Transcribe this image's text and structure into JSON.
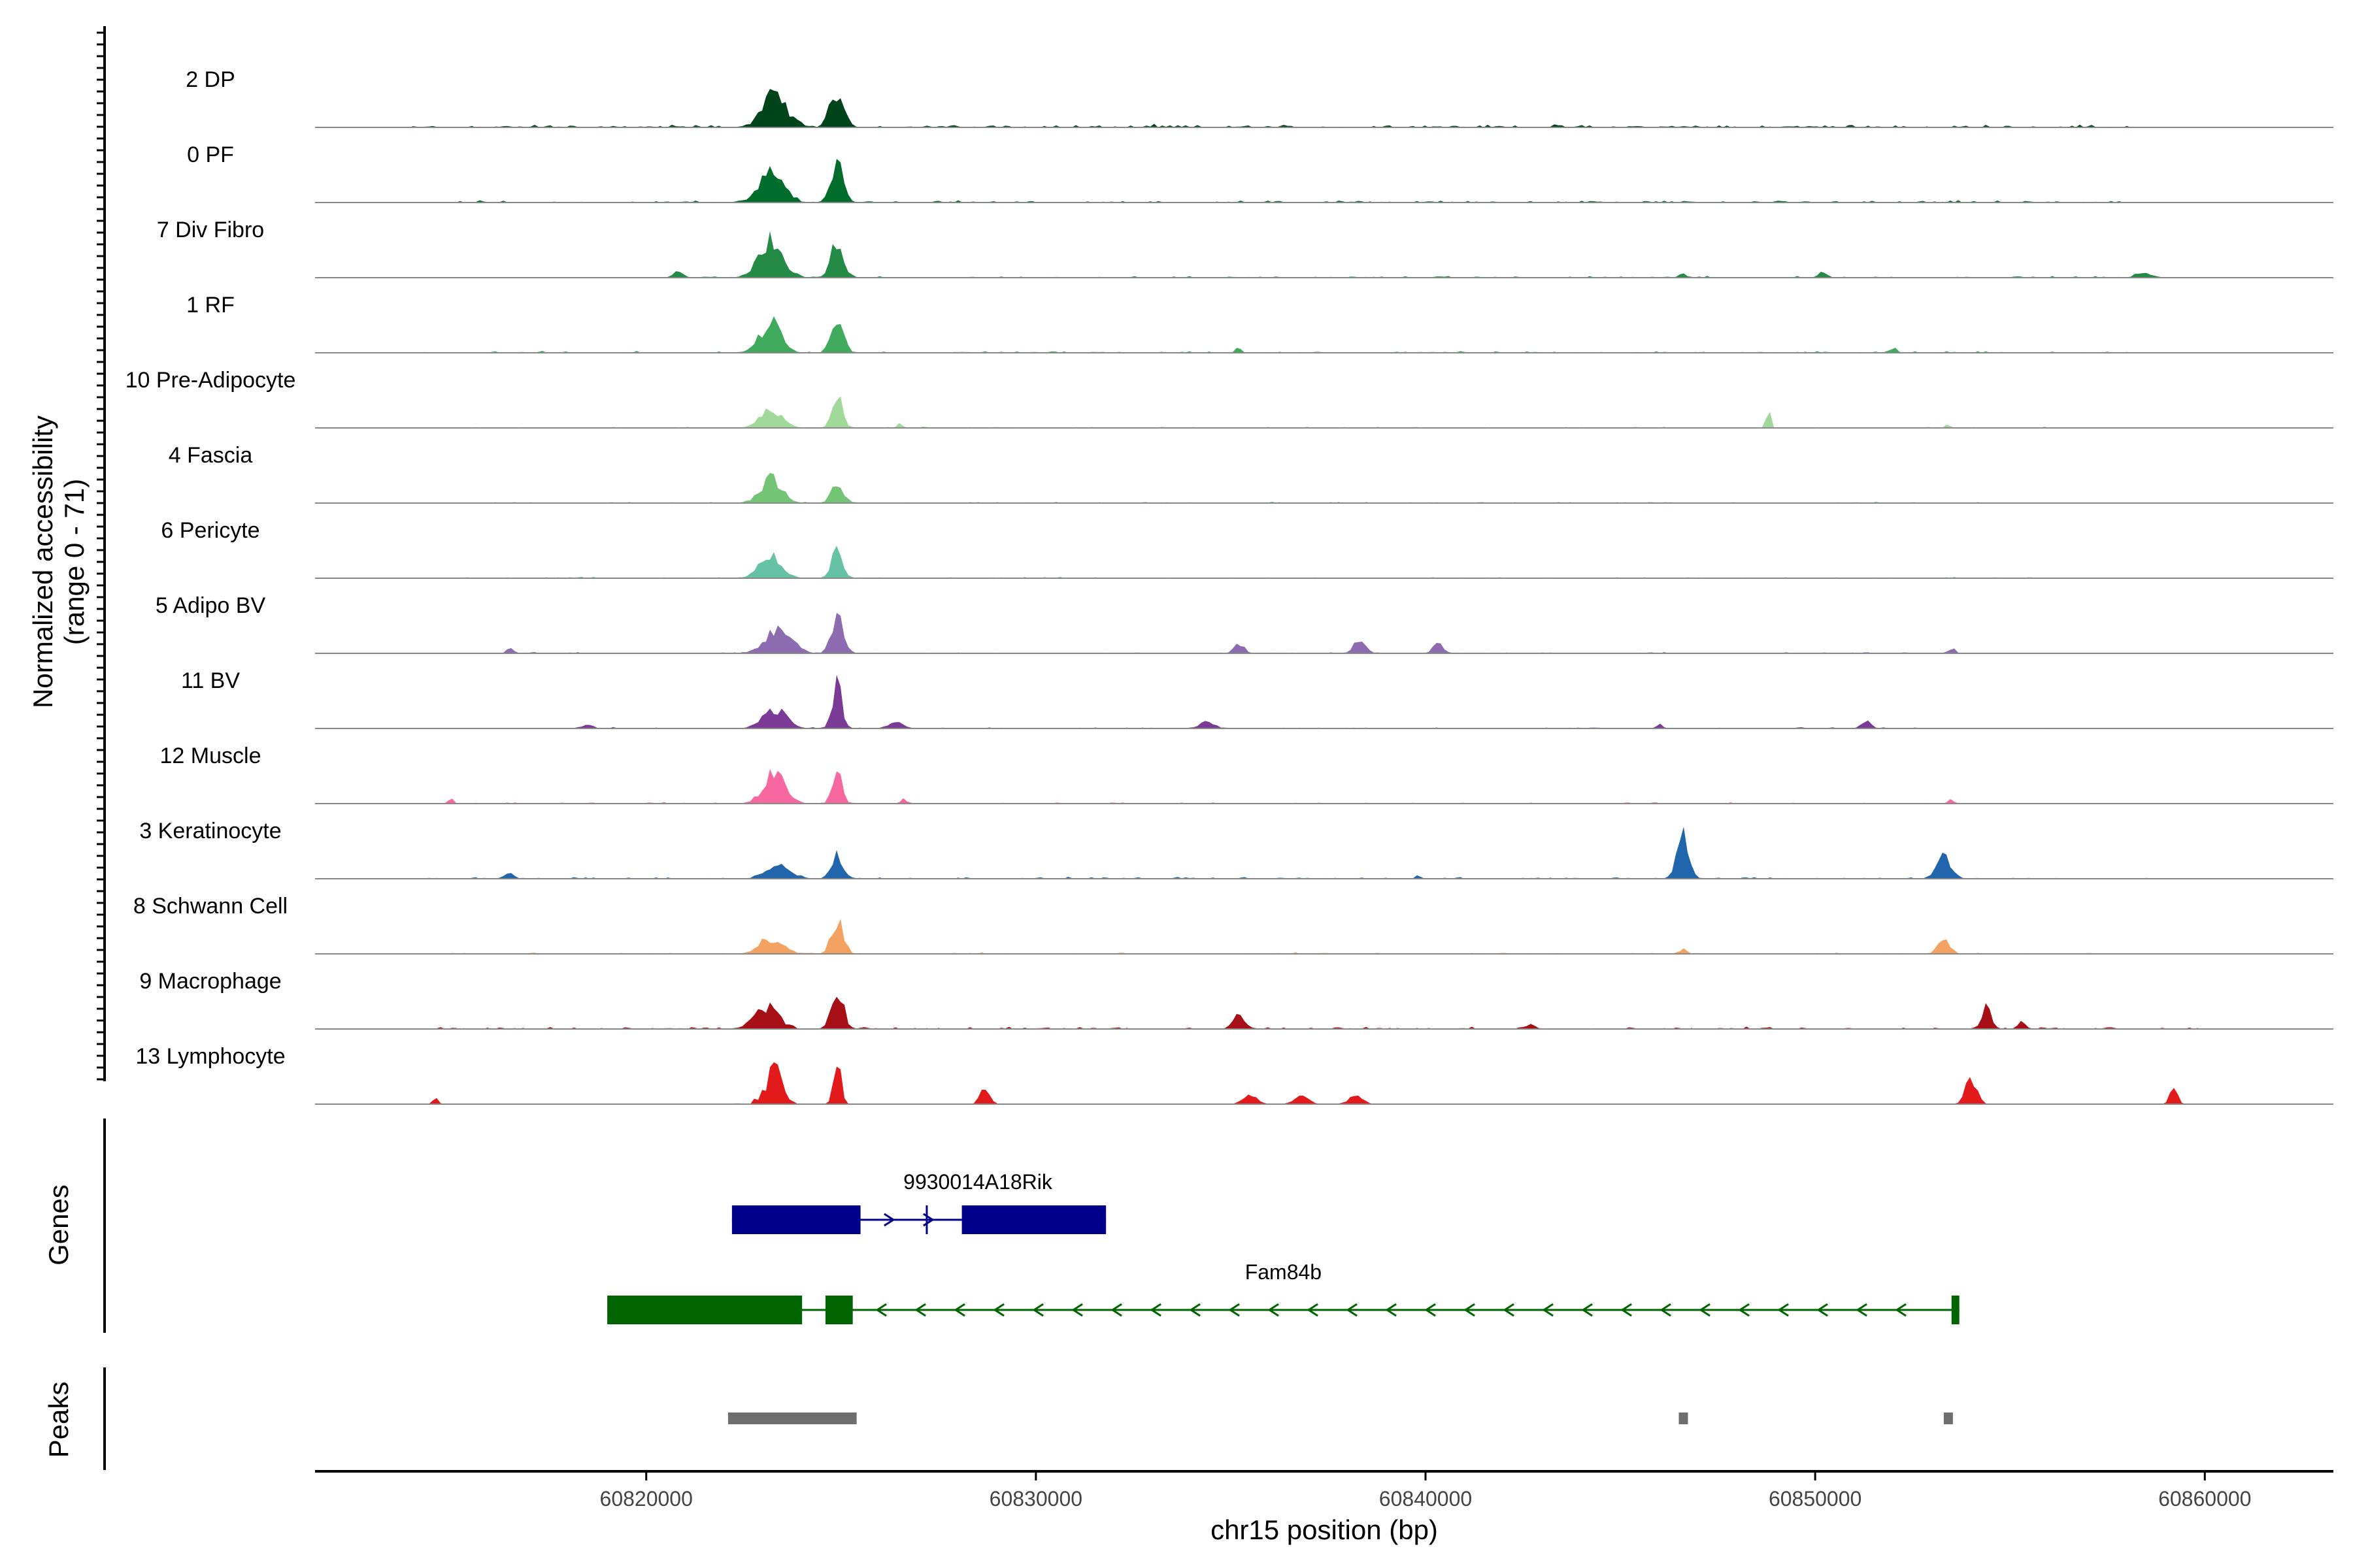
{
  "chart_data": {
    "type": "area",
    "title": "",
    "ylabel_line1": "Normalized accessibility",
    "ylabel_line2": "(range 0 - 71)",
    "y_range": [
      0,
      71
    ],
    "xlabel": "chr15 position (bp)",
    "xlim": [
      60811500,
      60863300
    ],
    "x_ticks": [
      60820000,
      60830000,
      60840000,
      60850000,
      60860000
    ],
    "x_tick_labels": [
      "60820000",
      "60830000",
      "60840000",
      "60850000",
      "60860000"
    ],
    "tracks": [
      {
        "label": "2 DP",
        "color": "#00441b",
        "peaks": [
          [
            60823300,
            0.75,
            500
          ],
          [
            60824900,
            0.8,
            300
          ]
        ],
        "background": [
          [
            60814000,
            60858000,
            0.07
          ]
        ]
      },
      {
        "label": "0 PF",
        "color": "#006d2c",
        "peaks": [
          [
            60823200,
            0.7,
            500
          ],
          [
            60824900,
            0.9,
            250
          ]
        ],
        "background": [
          [
            60815000,
            60858000,
            0.05
          ]
        ]
      },
      {
        "label": "7 Div Fibro",
        "color": "#238b45",
        "peaks": [
          [
            60823200,
            0.85,
            500
          ],
          [
            60824900,
            0.9,
            250
          ],
          [
            60820800,
            0.15,
            200
          ],
          [
            60846600,
            0.1,
            150
          ],
          [
            60850200,
            0.15,
            150
          ],
          [
            60858400,
            0.12,
            250
          ]
        ],
        "background": [
          [
            60820000,
            60859000,
            0.04
          ]
        ]
      },
      {
        "label": "1 RF",
        "color": "#41ab5d",
        "peaks": [
          [
            60823200,
            0.7,
            450
          ],
          [
            60824900,
            0.85,
            250
          ],
          [
            60835200,
            0.1,
            120
          ],
          [
            60852000,
            0.1,
            150
          ]
        ],
        "background": [
          [
            60814000,
            60858000,
            0.04
          ]
        ]
      },
      {
        "label": "10 Pre-Adipocyte",
        "color": "#a1d99b",
        "peaks": [
          [
            60823200,
            0.4,
            450
          ],
          [
            60824900,
            0.85,
            200
          ],
          [
            60826500,
            0.1,
            100
          ],
          [
            60848800,
            0.4,
            100
          ],
          [
            60853400,
            0.1,
            100
          ]
        ],
        "background": [
          [
            60815000,
            60856000,
            0.03
          ]
        ]
      },
      {
        "label": "4 Fascia",
        "color": "#74c476",
        "peaks": [
          [
            60823200,
            0.55,
            450
          ],
          [
            60824900,
            0.5,
            250
          ]
        ],
        "background": [
          [
            60815000,
            60856000,
            0.03
          ]
        ]
      },
      {
        "label": "6 Pericyte",
        "color": "#66c2a4",
        "peaks": [
          [
            60823200,
            0.55,
            450
          ],
          [
            60824900,
            0.6,
            250
          ]
        ],
        "background": [
          [
            60815000,
            60856000,
            0.03
          ]
        ]
      },
      {
        "label": "5 Adipo BV",
        "color": "#8c6bb1",
        "peaks": [
          [
            60823400,
            0.55,
            550
          ],
          [
            60824900,
            0.8,
            250
          ],
          [
            60835200,
            0.25,
            200
          ],
          [
            60838300,
            0.28,
            250
          ],
          [
            60840300,
            0.25,
            200
          ],
          [
            60853500,
            0.1,
            150
          ],
          [
            60816500,
            0.1,
            150
          ]
        ],
        "background": [
          [
            60816000,
            60856000,
            0.03
          ]
        ]
      },
      {
        "label": "11 BV",
        "color": "#7a3a96",
        "peaks": [
          [
            60823300,
            0.45,
            500
          ],
          [
            60824900,
            1.0,
            200
          ],
          [
            60826400,
            0.15,
            300
          ],
          [
            60834400,
            0.15,
            300
          ],
          [
            60846000,
            0.1,
            100
          ],
          [
            60851300,
            0.15,
            200
          ],
          [
            60818500,
            0.1,
            200
          ]
        ],
        "background": [
          [
            60818000,
            60856000,
            0.03
          ]
        ]
      },
      {
        "label": "12 Muscle",
        "color": "#f768a1",
        "peaks": [
          [
            60823300,
            0.7,
            450
          ],
          [
            60824900,
            0.8,
            200
          ],
          [
            60815000,
            0.1,
            100
          ],
          [
            60826600,
            0.1,
            100
          ],
          [
            60853500,
            0.1,
            100
          ]
        ],
        "background": [
          [
            60814000,
            60854000,
            0.03
          ]
        ]
      },
      {
        "label": "3 Keratinocyte",
        "color": "#2166ac",
        "peaks": [
          [
            60823400,
            0.35,
            500
          ],
          [
            60824900,
            0.55,
            250
          ],
          [
            60846600,
            0.95,
            250
          ],
          [
            60853300,
            0.55,
            300
          ],
          [
            60816500,
            0.1,
            200
          ],
          [
            60839800,
            0.1,
            100
          ]
        ],
        "background": [
          [
            60814000,
            60859000,
            0.04
          ]
        ]
      },
      {
        "label": "8 Schwann Cell",
        "color": "#f4a261",
        "peaks": [
          [
            60823200,
            0.35,
            500
          ],
          [
            60824900,
            0.8,
            250
          ],
          [
            60846600,
            0.1,
            150
          ],
          [
            60853300,
            0.3,
            250
          ]
        ],
        "background": [
          [
            60815000,
            60859000,
            0.03
          ]
        ]
      },
      {
        "label": "9 Macrophage",
        "color": "#a50f15",
        "peaks": [
          [
            60823100,
            0.5,
            500
          ],
          [
            60824900,
            1.0,
            250
          ],
          [
            60835200,
            0.35,
            250
          ],
          [
            60854400,
            0.5,
            200
          ],
          [
            60855300,
            0.2,
            150
          ],
          [
            60842700,
            0.1,
            200
          ]
        ],
        "background": [
          [
            60814500,
            60860000,
            0.05
          ]
        ]
      },
      {
        "label": "13 Lymphocyte",
        "color": "#e31a1c",
        "peaks": [
          [
            60823300,
            0.9,
            300
          ],
          [
            60824900,
            1.0,
            150
          ],
          [
            60828700,
            0.4,
            200
          ],
          [
            60854000,
            0.55,
            250
          ],
          [
            60859200,
            0.4,
            150
          ],
          [
            60814600,
            0.2,
            100
          ],
          [
            60835500,
            0.2,
            300
          ],
          [
            60836800,
            0.2,
            300
          ],
          [
            60838200,
            0.2,
            300
          ]
        ],
        "background": [
          [
            60822000,
            60824000,
            0.15
          ]
        ]
      }
    ],
    "genes": [
      {
        "name": "9930014A18Rik",
        "color": "#00008b",
        "strand": "+",
        "start": 60822200,
        "end": 60831800,
        "exons": [
          [
            60822200,
            60825500
          ],
          [
            60828100,
            60831800
          ]
        ],
        "marker_x": 60827200
      },
      {
        "name": "Fam84b",
        "color": "#006400",
        "strand": "-",
        "start": 60819000,
        "end": 60853700,
        "exons": [
          [
            60819000,
            60824000
          ],
          [
            60824600,
            60825300
          ],
          [
            60853500,
            60853700
          ]
        ]
      }
    ],
    "peaks_track": {
      "label": "Peaks",
      "color": "#6e6e6e",
      "regions": [
        [
          60822100,
          60825400
        ],
        [
          60846500,
          60846700
        ],
        [
          60853300,
          60853500
        ]
      ]
    },
    "panel_labels": {
      "genes": "Genes",
      "peaks": "Peaks"
    }
  }
}
